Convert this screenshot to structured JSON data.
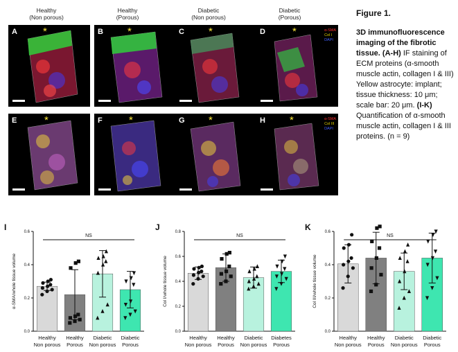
{
  "column_labels": [
    "Healthy\n(Non porous)",
    "Healthy\n(Porous)",
    "Diabetic\n(Non porous)",
    "Diabetic\n(Porous)"
  ],
  "panels_row1": {
    "letters": [
      "A",
      "B",
      "C",
      "D"
    ],
    "legend": [
      "α-SMA",
      "Col I",
      "DAPI"
    ],
    "legend_colors": [
      "#ff3030",
      "#e0d000",
      "#4060ff"
    ]
  },
  "panels_row2": {
    "letters": [
      "E",
      "F",
      "G",
      "H"
    ],
    "legend": [
      "α-SMA",
      "Col III",
      "DAPI"
    ],
    "legend_colors": [
      "#ff3030",
      "#e0d000",
      "#4060ff"
    ]
  },
  "star": "*",
  "figure_label": "Figure 1.",
  "caption": {
    "title": "3D immunofluorescence imaging of the fibrotic tissue.",
    "ref_ah": "(A-H)",
    "body1": " IF staining of ECM proteins (α-smooth muscle actin, collagen I & III) Yellow astrocyte: implant; tissue thickness: 10 μm; scale bar: 20 μm. ",
    "ref_ik": "(I-K)",
    "body2": " Quantification of α-smooth muscle actin, collagen I & III proteins. (n = 9)"
  },
  "chart_data": [
    {
      "type": "bar",
      "panel_letter": "I",
      "ylabel": "α-SMA/whole tissue volume",
      "ylim": [
        0,
        0.6
      ],
      "yticks": [
        "0.0",
        "0.2",
        "0.4",
        "0.6"
      ],
      "categories": [
        "Healthy\nNon porous",
        "Healthy\nPorous",
        "Diabetic\nNon porous",
        "Diabetic\nPorous"
      ],
      "values": [
        0.27,
        0.22,
        0.345,
        0.25
      ],
      "errors": [
        0.025,
        0.15,
        0.14,
        0.11
      ],
      "colors": [
        "#d9d9d9",
        "#808080",
        "#b8f2de",
        "#3ee6b0"
      ],
      "markers": [
        "circle",
        "square",
        "triangle",
        "triangle-down"
      ],
      "points": [
        [
          0.22,
          0.24,
          0.25,
          0.26,
          0.27,
          0.28,
          0.29,
          0.3,
          0.31
        ],
        [
          0.05,
          0.06,
          0.07,
          0.08,
          0.09,
          0.1,
          0.38,
          0.41,
          0.42
        ],
        [
          0.08,
          0.12,
          0.16,
          0.35,
          0.4,
          0.42,
          0.44,
          0.45,
          0.48
        ],
        [
          0.08,
          0.1,
          0.12,
          0.16,
          0.18,
          0.28,
          0.3,
          0.32,
          0.35
        ]
      ],
      "sig_label": "NS"
    },
    {
      "type": "bar",
      "panel_letter": "J",
      "ylabel": "Col I/whole tissue volume",
      "ylim": [
        0,
        0.8
      ],
      "yticks": [
        "0.0",
        "0.2",
        "0.4",
        "0.6",
        "0.8"
      ],
      "categories": [
        "Healthy\nNon porous",
        "Healthy\nPorous",
        "Diabetic\nNon porous",
        "Diabetes\nPorous"
      ],
      "values": [
        0.465,
        0.51,
        0.43,
        0.48
      ],
      "errors": [
        0.05,
        0.11,
        0.085,
        0.09
      ],
      "colors": [
        "#d9d9d9",
        "#808080",
        "#b8f2de",
        "#3ee6b0"
      ],
      "markers": [
        "circle",
        "square",
        "triangle",
        "triangle-down"
      ],
      "points": [
        [
          0.38,
          0.42,
          0.44,
          0.45,
          0.47,
          0.48,
          0.5,
          0.51,
          0.52
        ],
        [
          0.38,
          0.4,
          0.44,
          0.46,
          0.48,
          0.52,
          0.58,
          0.62,
          0.63
        ],
        [
          0.34,
          0.36,
          0.38,
          0.4,
          0.42,
          0.44,
          0.48,
          0.5,
          0.52
        ],
        [
          0.34,
          0.38,
          0.42,
          0.44,
          0.46,
          0.5,
          0.52,
          0.56,
          0.6
        ]
      ],
      "sig_label": "NS"
    },
    {
      "type": "bar",
      "panel_letter": "K",
      "ylabel": "Col III/whole tissue volume",
      "ylim": [
        0,
        0.6
      ],
      "yticks": [
        "0.0",
        "0.2",
        "0.4",
        "0.6"
      ],
      "categories": [
        "Healthy\nNon porous",
        "Healthy\nPorous",
        "Diabetic\nNon porous",
        "Diabetic\nPorous"
      ],
      "values": [
        0.405,
        0.44,
        0.36,
        0.44
      ],
      "errors": [
        0.115,
        0.155,
        0.11,
        0.15
      ],
      "colors": [
        "#d9d9d9",
        "#808080",
        "#b8f2de",
        "#3ee6b0"
      ],
      "markers": [
        "circle",
        "square",
        "triangle",
        "triangle-down"
      ],
      "points": [
        [
          0.26,
          0.33,
          0.38,
          0.4,
          0.42,
          0.44,
          0.5,
          0.52,
          0.58
        ],
        [
          0.24,
          0.28,
          0.34,
          0.38,
          0.44,
          0.5,
          0.54,
          0.62,
          0.63
        ],
        [
          0.14,
          0.2,
          0.24,
          0.3,
          0.36,
          0.42,
          0.44,
          0.48,
          0.52
        ],
        [
          0.2,
          0.26,
          0.32,
          0.4,
          0.44,
          0.48,
          0.54,
          0.58,
          0.6
        ]
      ],
      "sig_label": "NS"
    }
  ]
}
